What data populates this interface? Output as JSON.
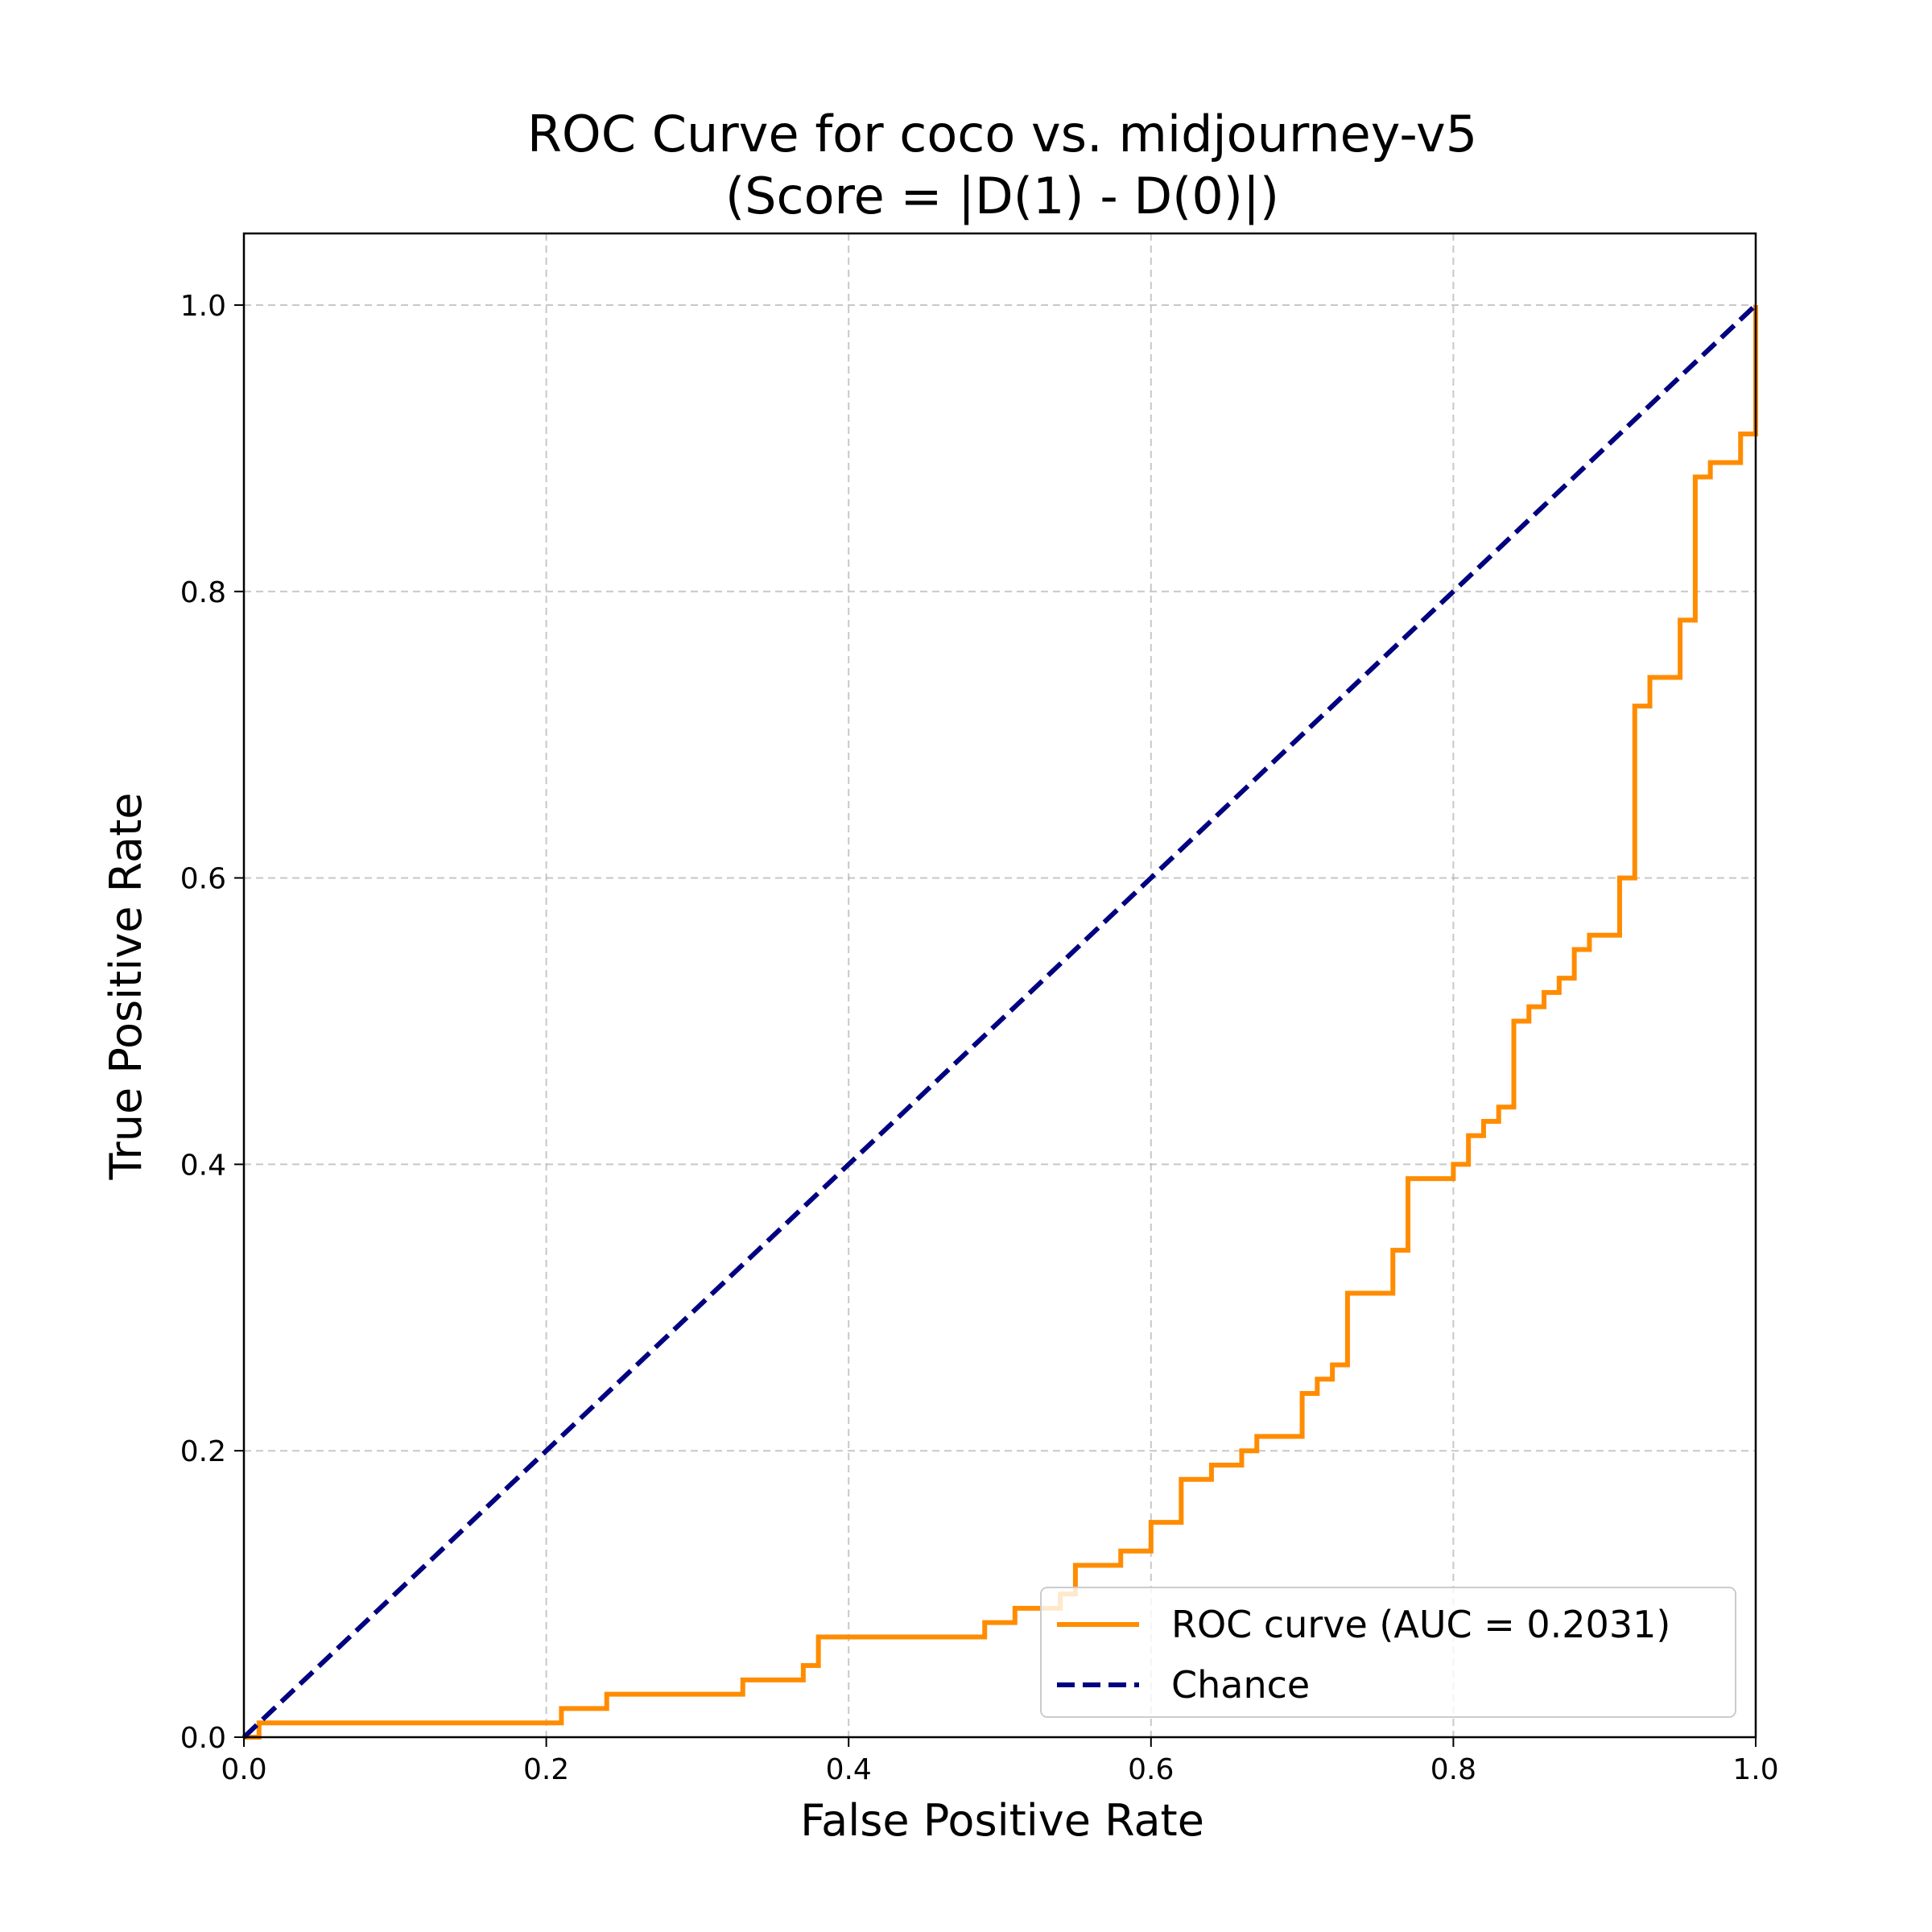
{
  "chart_data": {
    "type": "line",
    "title": [
      "ROC Curve for coco vs. midjourney-v5",
      "(Score = |D(1) - D(0)|)"
    ],
    "xlabel": "False Positive Rate",
    "ylabel": "True Positive Rate",
    "xlim": [
      0.0,
      1.0
    ],
    "ylim": [
      0.0,
      1.05
    ],
    "xticks": [
      "0.0",
      "0.2",
      "0.4",
      "0.6",
      "0.8",
      "1.0"
    ],
    "yticks": [
      "0.0",
      "0.2",
      "0.4",
      "0.6",
      "0.8",
      "1.0"
    ],
    "grid": true,
    "legend_position": "lower-right",
    "series": [
      {
        "name": "ROC curve (AUC = 0.2031)",
        "color": "#ff8c00",
        "style": "solid",
        "step": true,
        "x": [
          0.0,
          0.01,
          0.21,
          0.24,
          0.33,
          0.37,
          0.38,
          0.49,
          0.5,
          0.51,
          0.54,
          0.55,
          0.58,
          0.6,
          0.62,
          0.64,
          0.66,
          0.67,
          0.7,
          0.71,
          0.72,
          0.73,
          0.76,
          0.77,
          0.8,
          0.81,
          0.82,
          0.83,
          0.84,
          0.85,
          0.86,
          0.87,
          0.88,
          0.89,
          0.91,
          0.92,
          0.93,
          0.95,
          0.96,
          0.97,
          0.99,
          1.0
        ],
        "y": [
          0.0,
          0.01,
          0.02,
          0.03,
          0.04,
          0.05,
          0.07,
          0.08,
          0.08,
          0.09,
          0.1,
          0.12,
          0.13,
          0.15,
          0.18,
          0.19,
          0.2,
          0.21,
          0.24,
          0.25,
          0.26,
          0.31,
          0.34,
          0.39,
          0.4,
          0.42,
          0.43,
          0.44,
          0.5,
          0.51,
          0.52,
          0.53,
          0.55,
          0.56,
          0.6,
          0.72,
          0.74,
          0.78,
          0.88,
          0.89,
          0.91,
          1.0
        ]
      },
      {
        "name": "Chance",
        "color": "#000080",
        "style": "dashed",
        "step": false,
        "x": [
          0.0,
          1.0
        ],
        "y": [
          0.0,
          1.0
        ]
      }
    ]
  }
}
